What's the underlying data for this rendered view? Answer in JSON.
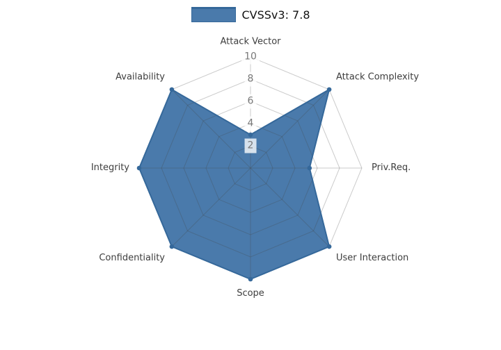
{
  "legend": {
    "position": "top-center"
  },
  "chart_data": {
    "type": "radar",
    "categories": [
      "Attack Vector",
      "Attack Complexity",
      "Priv.Req.",
      "User Interaction",
      "Scope",
      "Confidentiality",
      "Integrity",
      "Availability"
    ],
    "series": [
      {
        "name": "CVSSv3: 7.8",
        "values": [
          3,
          10,
          5.3,
          10,
          10,
          10,
          10,
          10
        ]
      }
    ],
    "radial_ticks": [
      2,
      4,
      6,
      8,
      10
    ],
    "radial_range": [
      0,
      10
    ],
    "start_angle_deg": -90,
    "direction": "clockwise",
    "grid": true,
    "legend_position": "top-center",
    "colors": {
      "fill": "#4a7aab",
      "line": "#35689a",
      "grid": "rgba(70,70,70,0.28)",
      "tick_text": "#787878",
      "tick_backdrop": "rgba(255,255,255,0.78)",
      "axis_label": "#3d3d3d",
      "legend_text": "#111111",
      "background": "#ffffff"
    }
  }
}
